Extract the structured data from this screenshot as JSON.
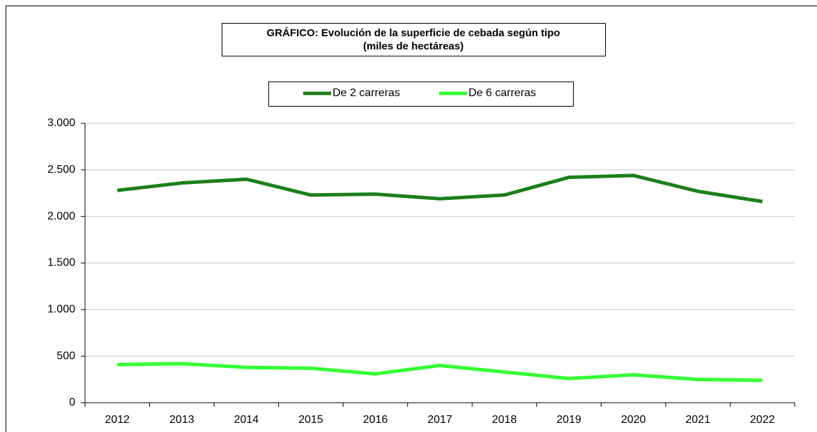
{
  "chart_data": {
    "type": "line",
    "title": "GRÁFICO: Evolución de la superficie de cebada según tipo",
    "subtitle": "(miles de hectáreas)",
    "categories": [
      "2012",
      "2013",
      "2014",
      "2015",
      "2016",
      "2017",
      "2018",
      "2019",
      "2020",
      "2021",
      "2022"
    ],
    "series": [
      {
        "name": "De 2 carreras",
        "color": "#1b7f1b",
        "values": [
          2280,
          2360,
          2400,
          2230,
          2240,
          2190,
          2230,
          2420,
          2440,
          2270,
          2160
        ]
      },
      {
        "name": "De 6 carreras",
        "color": "#33ff33",
        "values": [
          410,
          420,
          380,
          370,
          310,
          400,
          330,
          260,
          300,
          250,
          240
        ]
      }
    ],
    "ylim": [
      0,
      3000
    ],
    "yticks": [
      0,
      500,
      {
        "value": 1000,
        "label": "1.000"
      },
      {
        "value": 1500,
        "label": "1.500"
      },
      {
        "value": 2000,
        "label": "2.000"
      },
      {
        "value": 2500,
        "label": "2.500"
      },
      {
        "value": 3000,
        "label": "3.000"
      }
    ],
    "grid": true,
    "legend": "top"
  }
}
